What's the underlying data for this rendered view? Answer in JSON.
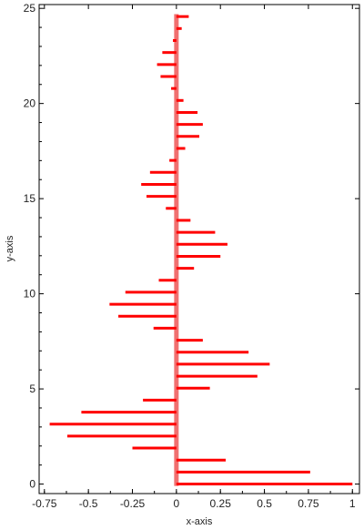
{
  "chart_data": {
    "type": "bar",
    "orientation": "horizontal",
    "title": "",
    "xlabel": "x-axis",
    "ylabel": "y-axis",
    "xlim": [
      -0.78,
      1.04
    ],
    "ylim": [
      -0.5,
      25.2
    ],
    "grid": false,
    "x_ticks": [
      -0.75,
      -0.5,
      -0.25,
      0,
      0.25,
      0.5,
      0.75,
      1
    ],
    "x_tick_labels": [
      "-0.75",
      "-0.5",
      "-0.25",
      "0",
      "0.25",
      "0.5",
      "0.75",
      "1"
    ],
    "y_ticks": [
      0,
      5,
      10,
      15,
      20,
      25
    ],
    "y_tick_labels": [
      "0",
      "5",
      "10",
      "15",
      "20",
      "25"
    ],
    "bar_color": "#ff0000",
    "zero_line_color": "#f07070",
    "series": [
      {
        "y": [
          0.0,
          0.63,
          1.26,
          1.89,
          2.52,
          3.15,
          3.78,
          4.41,
          5.04,
          5.67,
          6.3,
          6.93,
          7.56,
          8.19,
          8.82,
          9.45,
          10.08,
          10.71,
          11.34,
          11.97,
          12.6,
          13.23,
          13.86,
          14.49,
          15.12,
          15.75,
          16.38,
          17.01,
          17.64,
          18.27,
          18.9,
          19.53,
          20.16,
          20.79,
          21.42,
          22.05,
          22.68,
          23.31,
          23.94,
          24.57
        ],
        "x": [
          1.0,
          0.76,
          0.28,
          -0.25,
          -0.62,
          -0.72,
          -0.54,
          -0.19,
          0.19,
          0.46,
          0.53,
          0.41,
          0.15,
          -0.13,
          -0.33,
          -0.38,
          -0.29,
          -0.1,
          0.1,
          0.25,
          0.29,
          0.22,
          0.08,
          -0.06,
          -0.17,
          -0.2,
          -0.15,
          -0.04,
          0.05,
          0.13,
          0.15,
          0.12,
          0.04,
          -0.03,
          -0.09,
          -0.11,
          -0.08,
          -0.02,
          0.03,
          0.07
        ]
      }
    ]
  }
}
